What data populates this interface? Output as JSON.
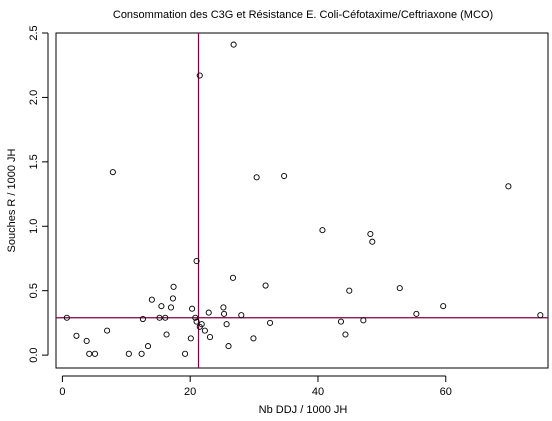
{
  "chart_data": {
    "type": "scatter",
    "title": "Consommation des C3G et Résistance E. Coli-Céfotaxime/Ceftriaxone (MCO)",
    "xlabel": "Nb DDJ / 1000 JH",
    "ylabel": "Souches R / 1000 JH",
    "xlim": [
      -1,
      76
    ],
    "ylim": [
      -0.1,
      2.5
    ],
    "x_ticks": [
      0,
      20,
      40,
      60
    ],
    "x_tick_labels": [
      "0",
      "20",
      "40",
      "60"
    ],
    "y_ticks": [
      0.0,
      0.5,
      1.0,
      1.5,
      2.0,
      2.5
    ],
    "y_tick_labels": [
      "0.0",
      "0.5",
      "1.0",
      "1.5",
      "2.0",
      "2.5"
    ],
    "grid": false,
    "point_color": "#000000",
    "reference_line_color": "#800040",
    "reference_lines": {
      "x": 21.3,
      "y": 0.29
    },
    "points": [
      [
        0.7,
        0.29
      ],
      [
        2.2,
        0.15
      ],
      [
        3.8,
        0.11
      ],
      [
        4.2,
        0.01
      ],
      [
        5.1,
        0.01
      ],
      [
        7.0,
        0.19
      ],
      [
        7.9,
        1.42
      ],
      [
        10.4,
        0.01
      ],
      [
        12.4,
        0.01
      ],
      [
        12.6,
        0.28
      ],
      [
        13.4,
        0.07
      ],
      [
        14.0,
        0.43
      ],
      [
        15.2,
        0.29
      ],
      [
        15.5,
        0.38
      ],
      [
        16.1,
        0.29
      ],
      [
        16.3,
        0.16
      ],
      [
        17.0,
        0.37
      ],
      [
        17.3,
        0.44
      ],
      [
        17.4,
        0.53
      ],
      [
        19.2,
        0.01
      ],
      [
        20.1,
        0.13
      ],
      [
        20.3,
        0.36
      ],
      [
        20.8,
        0.29
      ],
      [
        21.0,
        0.73
      ],
      [
        21.0,
        0.26
      ],
      [
        21.5,
        2.17
      ],
      [
        21.5,
        0.22
      ],
      [
        21.8,
        0.24
      ],
      [
        22.3,
        0.19
      ],
      [
        22.9,
        0.33
      ],
      [
        23.1,
        0.14
      ],
      [
        25.2,
        0.37
      ],
      [
        25.3,
        0.32
      ],
      [
        25.7,
        0.24
      ],
      [
        26.0,
        0.07
      ],
      [
        26.7,
        0.6
      ],
      [
        26.8,
        2.41
      ],
      [
        28.0,
        0.31
      ],
      [
        29.9,
        0.13
      ],
      [
        30.4,
        1.38
      ],
      [
        31.8,
        0.54
      ],
      [
        32.5,
        0.25
      ],
      [
        34.7,
        1.39
      ],
      [
        40.7,
        0.97
      ],
      [
        43.6,
        0.26
      ],
      [
        44.3,
        0.16
      ],
      [
        44.9,
        0.5
      ],
      [
        47.1,
        0.27
      ],
      [
        48.2,
        0.94
      ],
      [
        48.5,
        0.88
      ],
      [
        52.8,
        0.52
      ],
      [
        55.4,
        0.32
      ],
      [
        59.6,
        0.38
      ],
      [
        69.8,
        1.31
      ],
      [
        74.8,
        0.31
      ]
    ]
  }
}
